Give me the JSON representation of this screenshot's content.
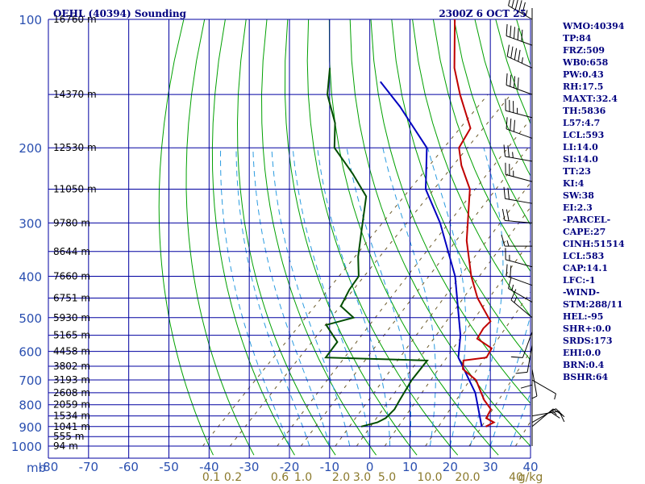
{
  "chart_data": {
    "type": "skew-t",
    "title": "OEHL (40394) Sounding",
    "datetime": "2300Z  6 OCT 25",
    "x_axis": {
      "unit_label": "mb",
      "range_c": [
        -80,
        40
      ],
      "ticks": [
        -80,
        -70,
        -60,
        -50,
        -40,
        -30,
        -20,
        -10,
        0,
        10,
        20,
        30,
        40
      ],
      "tick_labels": [
        "-80",
        "-70",
        "-60",
        "-50",
        "-40",
        "-30",
        "-20",
        "-10",
        "0",
        "10",
        "20",
        "30",
        "40"
      ]
    },
    "y_axis": {
      "range_mb": [
        100,
        1000
      ],
      "ticks": [
        100,
        200,
        300,
        400,
        500,
        600,
        700,
        800,
        900,
        1000
      ],
      "tick_labels": [
        "100",
        "200",
        "300",
        "400",
        "500",
        "600",
        "700",
        "800",
        "900",
        "1000"
      ]
    },
    "heights": [
      {
        "p": 100,
        "label": "16760 m"
      },
      {
        "p": 150,
        "label": "14370 m"
      },
      {
        "p": 200,
        "label": "12530 m"
      },
      {
        "p": 250,
        "label": "11050 m"
      },
      {
        "p": 300,
        "label": "9780 m"
      },
      {
        "p": 350,
        "label": "8644 m"
      },
      {
        "p": 400,
        "label": "7660 m"
      },
      {
        "p": 450,
        "label": "6751 m"
      },
      {
        "p": 500,
        "label": "5930 m"
      },
      {
        "p": 550,
        "label": "5165 m"
      },
      {
        "p": 600,
        "label": "4458 m"
      },
      {
        "p": 650,
        "label": "3802 m"
      },
      {
        "p": 700,
        "label": "3193 m"
      },
      {
        "p": 750,
        "label": "2608 m"
      },
      {
        "p": 800,
        "label": "2059 m"
      },
      {
        "p": 850,
        "label": "1534 m"
      },
      {
        "p": 900,
        "label": "1041 m"
      },
      {
        "p": 950,
        "label": "555 m"
      },
      {
        "p": 1000,
        "label": "94 m"
      }
    ],
    "mixing_ratio_labels": [
      "0.1",
      "0.2",
      "0.6",
      "1.0",
      "2.0",
      "3.0",
      "5.0",
      "10.0",
      "20.0",
      "40",
      "g/kg"
    ],
    "mixing_ratio_values": [
      0.1,
      0.2,
      0.6,
      1.0,
      2.0,
      3.0,
      5.0,
      10.0,
      20.0,
      40.0
    ],
    "temperature": [
      [
        900,
        24
      ],
      [
        880,
        25
      ],
      [
        860,
        22
      ],
      [
        820,
        21
      ],
      [
        780,
        17
      ],
      [
        700,
        10
      ],
      [
        660,
        4
      ],
      [
        630,
        2
      ],
      [
        620,
        7
      ],
      [
        590,
        6
      ],
      [
        560,
        0
      ],
      [
        530,
        -1
      ],
      [
        510,
        -1
      ],
      [
        450,
        -10
      ],
      [
        400,
        -17
      ],
      [
        330,
        -27
      ],
      [
        250,
        -39
      ],
      [
        220,
        -47
      ],
      [
        200,
        -52
      ],
      [
        180,
        -54
      ],
      [
        150,
        -65
      ],
      [
        130,
        -73
      ],
      [
        100,
        -85
      ]
    ],
    "dewpoint": [
      [
        900,
        -7
      ],
      [
        880,
        -4
      ],
      [
        860,
        -3
      ],
      [
        820,
        -3
      ],
      [
        780,
        -4
      ],
      [
        700,
        -6
      ],
      [
        630,
        -7
      ],
      [
        620,
        -33
      ],
      [
        570,
        -34
      ],
      [
        520,
        -41
      ],
      [
        500,
        -36
      ],
      [
        470,
        -42
      ],
      [
        430,
        -44
      ],
      [
        400,
        -45
      ],
      [
        360,
        -50
      ],
      [
        310,
        -56
      ],
      [
        260,
        -63
      ],
      [
        230,
        -72
      ],
      [
        200,
        -83
      ],
      [
        175,
        -89
      ],
      [
        150,
        -98
      ],
      [
        130,
        -104
      ]
    ],
    "parcel": [
      [
        900,
        23
      ],
      [
        750,
        13
      ],
      [
        620,
        0
      ],
      [
        550,
        -5
      ],
      [
        400,
        -21
      ],
      [
        300,
        -38
      ],
      [
        250,
        -50
      ],
      [
        200,
        -60
      ],
      [
        160,
        -77
      ],
      [
        140,
        -88
      ]
    ],
    "wind_barbs": [
      {
        "p": 100,
        "dir": 300,
        "spd": 55
      },
      {
        "p": 115,
        "dir": 290,
        "spd": 50
      },
      {
        "p": 130,
        "dir": 295,
        "spd": 45
      },
      {
        "p": 150,
        "dir": 290,
        "spd": 40
      },
      {
        "p": 170,
        "dir": 285,
        "spd": 35
      },
      {
        "p": 190,
        "dir": 290,
        "spd": 30
      },
      {
        "p": 215,
        "dir": 280,
        "spd": 25
      },
      {
        "p": 240,
        "dir": 285,
        "spd": 25
      },
      {
        "p": 270,
        "dir": 280,
        "spd": 20
      },
      {
        "p": 300,
        "dir": 275,
        "spd": 20
      },
      {
        "p": 340,
        "dir": 270,
        "spd": 15
      },
      {
        "p": 380,
        "dir": 285,
        "spd": 15
      },
      {
        "p": 420,
        "dir": 290,
        "spd": 20
      },
      {
        "p": 460,
        "dir": 300,
        "spd": 15
      },
      {
        "p": 500,
        "dir": 310,
        "spd": 15
      },
      {
        "p": 540,
        "dir": 200,
        "spd": 10
      },
      {
        "p": 580,
        "dir": 190,
        "spd": 10
      },
      {
        "p": 620,
        "dir": 180,
        "spd": 10
      },
      {
        "p": 660,
        "dir": 170,
        "spd": 5
      },
      {
        "p": 700,
        "dir": 120,
        "spd": 5
      },
      {
        "p": 850,
        "dir": 80,
        "spd": 10
      },
      {
        "p": 880,
        "dir": 60,
        "spd": 15
      },
      {
        "p": 900,
        "dir": 50,
        "spd": 20
      }
    ]
  },
  "indices": [
    "WMO:40394",
    "TP:84",
    "FRZ:509",
    "WB0:658",
    "PW:0.43",
    "RH:17.5",
    "MAXT:32.4",
    "TH:5836",
    "L57:4.7",
    "LCL:593",
    "LI:14.0",
    "SI:14.0",
    "TT:23",
    "KI:4",
    "SW:38",
    "EI:2.3",
    "-PARCEL-",
    "CAPE:27",
    "CINH:51514",
    "LCL:583",
    "CAP:14.1",
    "LFC:-1",
    "-WIND-",
    "STM:288/11",
    "HEL:-95",
    "SHR+:0.0",
    "SRDS:173",
    "EHI:0.0",
    "BRN:0.4",
    "BSHR:64"
  ],
  "colors": {
    "grid": "#0000a0",
    "dry_adiabat": "#00a000",
    "moist_adiabat": "#2a9be0",
    "mixing_ratio": "#6b5a2a",
    "temperature": "#c00000",
    "dewpoint": "#004d00",
    "parcel": "#0000c0",
    "barb": "#000000"
  }
}
